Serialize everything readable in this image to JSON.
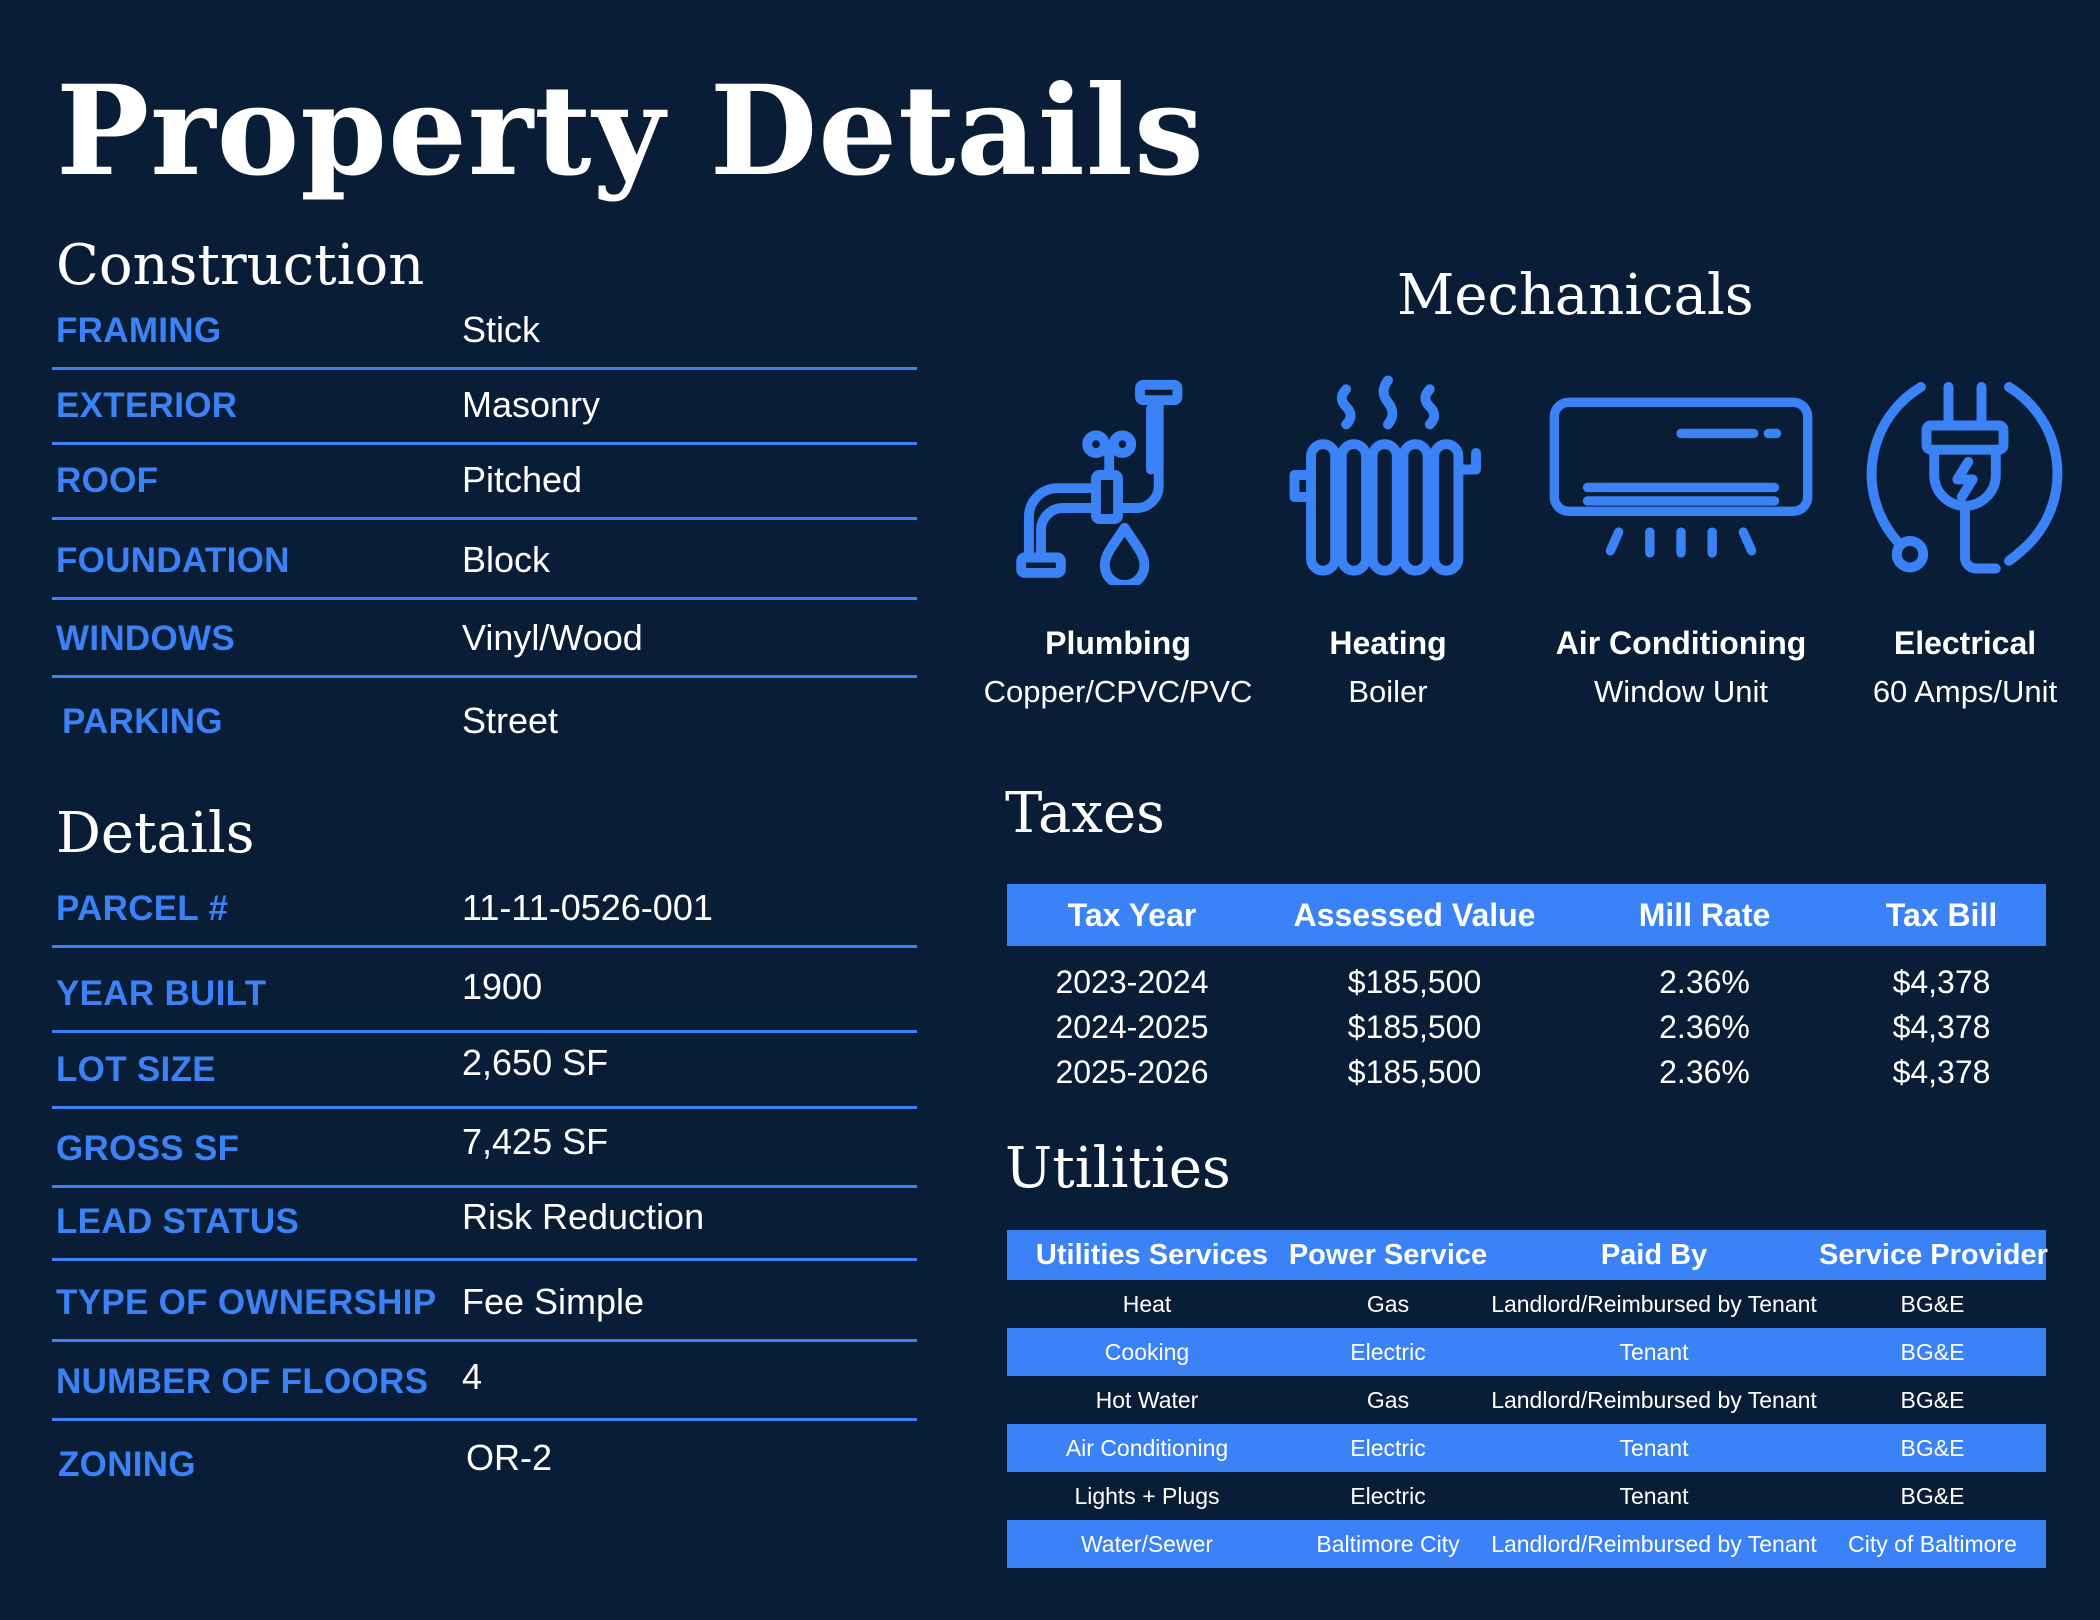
{
  "title": "Property Details",
  "construction": {
    "heading": "Construction",
    "rows": [
      {
        "label": "FRAMING",
        "value": "Stick"
      },
      {
        "label": "EXTERIOR",
        "value": "Masonry"
      },
      {
        "label": "ROOF",
        "value": "Pitched"
      },
      {
        "label": "FOUNDATION",
        "value": "Block"
      },
      {
        "label": "WINDOWS",
        "value": "Vinyl/Wood"
      },
      {
        "label": "PARKING",
        "value": "Street"
      }
    ]
  },
  "details": {
    "heading": "Details",
    "rows": [
      {
        "label": "PARCEL #",
        "value": "11-11-0526-001"
      },
      {
        "label": "YEAR BUILT",
        "value": "1900"
      },
      {
        "label": "LOT SIZE",
        "value": "2,650 SF"
      },
      {
        "label": "GROSS SF",
        "value": "7,425 SF"
      },
      {
        "label": "LEAD STATUS",
        "value": "Risk Reduction"
      },
      {
        "label": "TYPE OF OWNERSHIP",
        "value": "Fee Simple"
      },
      {
        "label": "NUMBER OF FLOORS",
        "value": "4"
      },
      {
        "label": "ZONING",
        "value": "OR-2"
      }
    ]
  },
  "mechanicals": {
    "heading": "Mechanicals",
    "items": [
      {
        "icon": "plumbing-icon",
        "name": "Plumbing",
        "value": "Copper/CPVC/PVC"
      },
      {
        "icon": "radiator-icon",
        "name": "Heating",
        "value": "Boiler"
      },
      {
        "icon": "air-conditioner-icon",
        "name": "Air Conditioning",
        "value": "Window Unit"
      },
      {
        "icon": "electrical-plug-icon",
        "name": "Electrical",
        "value": "60 Amps/Unit"
      }
    ]
  },
  "taxes": {
    "heading": "Taxes",
    "headers": [
      "Tax Year",
      "Assessed Value",
      "Mill Rate",
      "Tax Bill"
    ],
    "rows": [
      [
        "2023-2024",
        "$185,500",
        "2.36%",
        "$4,378"
      ],
      [
        "2024-2025",
        "$185,500",
        "2.36%",
        "$4,378"
      ],
      [
        "2025-2026",
        "$185,500",
        "2.36%",
        "$4,378"
      ]
    ]
  },
  "utilities": {
    "heading": "Utilities",
    "headers": [
      "Utilities Services",
      "Power Service",
      "Paid By",
      "Service Provider"
    ],
    "rows": [
      [
        "Heat",
        "Gas",
        "Landlord/Reimbursed by Tenant",
        "BG&E"
      ],
      [
        "Cooking",
        "Electric",
        "Tenant",
        "BG&E"
      ],
      [
        "Hot Water",
        "Gas",
        "Landlord/Reimbursed by Tenant",
        "BG&E"
      ],
      [
        "Air Conditioning",
        "Electric",
        "Tenant",
        "BG&E"
      ],
      [
        "Lights + Plugs",
        "Electric",
        "Tenant",
        "BG&E"
      ],
      [
        "Water/Sewer",
        "Baltimore City",
        "Landlord/Reimbursed by Tenant",
        "City of Baltimore"
      ]
    ]
  },
  "colors": {
    "background": "#0a1d37",
    "accent": "#3b82f6",
    "text": "#ffffff"
  }
}
